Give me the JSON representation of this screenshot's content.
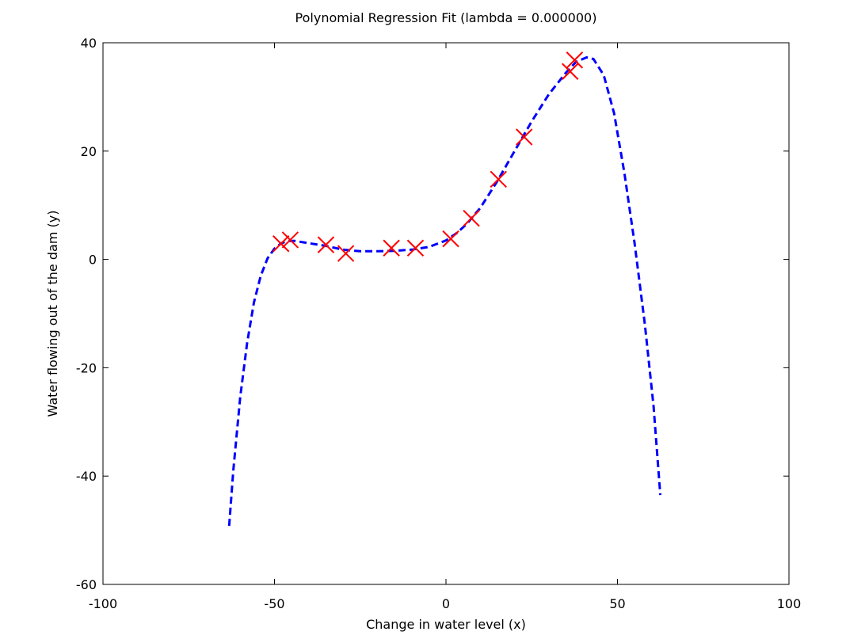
{
  "chart_data": {
    "type": "scatter",
    "title": "Polynomial Regression Fit (lambda = 0.000000)",
    "xlabel": "Change in water level (x)",
    "ylabel": "Water flowing out of the dam (y)",
    "xlim": [
      -100,
      100
    ],
    "ylim": [
      -60,
      40
    ],
    "xticks": [
      -100,
      -50,
      0,
      50,
      100
    ],
    "yticks": [
      -60,
      -40,
      -20,
      0,
      20,
      40
    ],
    "grid": false,
    "series": [
      {
        "kind": "markers",
        "marker": "x",
        "color": "#ff0000",
        "points": [
          [
            -48.1,
            2.9
          ],
          [
            -45.4,
            3.6
          ],
          [
            -35.0,
            2.7
          ],
          [
            -29.2,
            1.1
          ],
          [
            -15.9,
            2.1
          ],
          [
            -8.9,
            2.1
          ],
          [
            1.4,
            3.8
          ],
          [
            7.4,
            7.6
          ],
          [
            15.3,
            14.8
          ],
          [
            22.8,
            22.6
          ],
          [
            36.2,
            34.7
          ],
          [
            37.5,
            36.8
          ]
        ]
      },
      {
        "kind": "line",
        "style": "dashed",
        "color": "#0000ff",
        "points": [
          [
            -63.2,
            -49.2
          ],
          [
            -62.0,
            -39.0
          ],
          [
            -60.0,
            -25.5
          ],
          [
            -58.0,
            -15.5
          ],
          [
            -56.0,
            -8.0
          ],
          [
            -54.0,
            -3.0
          ],
          [
            -52.0,
            0.2
          ],
          [
            -50.0,
            2.0
          ],
          [
            -48.0,
            3.0
          ],
          [
            -46.0,
            3.4
          ],
          [
            -44.0,
            3.4
          ],
          [
            -40.0,
            3.0
          ],
          [
            -35.0,
            2.5
          ],
          [
            -30.0,
            1.8
          ],
          [
            -25.0,
            1.5
          ],
          [
            -20.0,
            1.5
          ],
          [
            -15.0,
            1.6
          ],
          [
            -10.0,
            1.8
          ],
          [
            -5.0,
            2.3
          ],
          [
            0.0,
            3.5
          ],
          [
            3.0,
            4.8
          ],
          [
            6.0,
            6.5
          ],
          [
            10.0,
            9.5
          ],
          [
            15.0,
            14.5
          ],
          [
            20.0,
            20.0
          ],
          [
            25.0,
            25.5
          ],
          [
            30.0,
            30.5
          ],
          [
            35.0,
            34.5
          ],
          [
            38.0,
            36.5
          ],
          [
            41.0,
            37.3
          ],
          [
            43.0,
            37.0
          ],
          [
            46.0,
            34.0
          ],
          [
            49.0,
            27.0
          ],
          [
            52.0,
            16.0
          ],
          [
            55.0,
            3.0
          ],
          [
            58.0,
            -12.0
          ],
          [
            60.5,
            -27.0
          ],
          [
            62.5,
            -43.5
          ]
        ]
      }
    ]
  }
}
